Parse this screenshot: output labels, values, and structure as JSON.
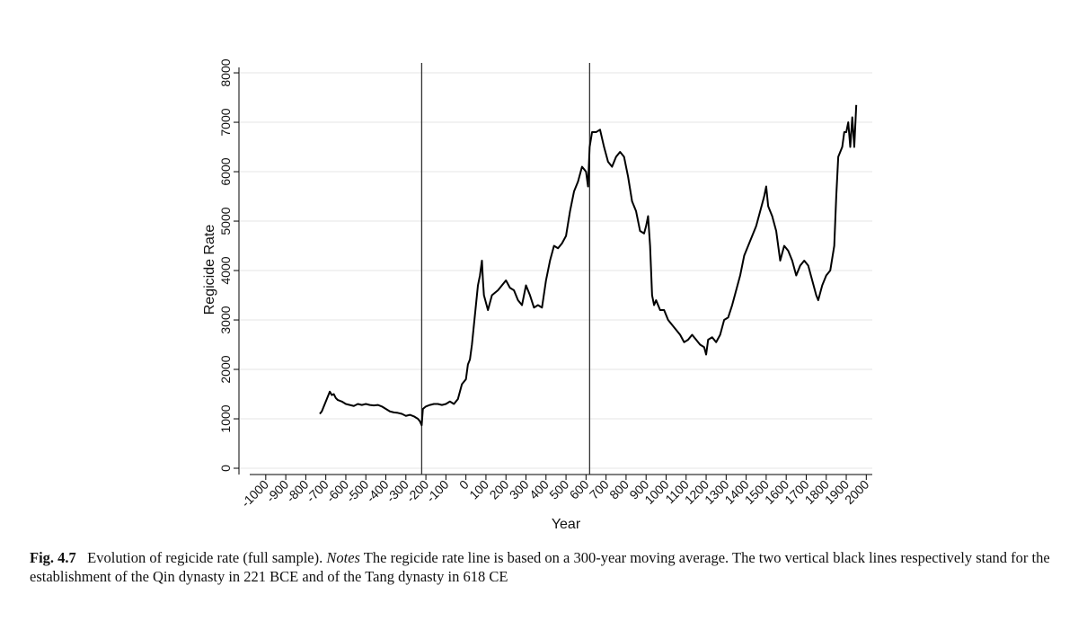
{
  "chart_data": {
    "type": "line",
    "xlabel": "Year",
    "ylabel": "Regicide Rate",
    "xlim": [
      -1080,
      2030
    ],
    "ylim": [
      -127,
      8110
    ],
    "xticks": [
      -1000,
      -900,
      -800,
      -700,
      -600,
      -500,
      -400,
      -300,
      -200,
      -100,
      0,
      100,
      200,
      300,
      400,
      500,
      600,
      700,
      800,
      900,
      1000,
      1100,
      1200,
      1300,
      1400,
      1500,
      1600,
      1700,
      1800,
      1900,
      2000
    ],
    "yticks": [
      0,
      1000,
      2000,
      3000,
      4000,
      5000,
      6000,
      7000,
      8000
    ],
    "grid": true,
    "vlines": [
      -221,
      618
    ],
    "x": [
      -730,
      -720,
      -710,
      -700,
      -690,
      -680,
      -670,
      -660,
      -650,
      -640,
      -620,
      -600,
      -580,
      -560,
      -540,
      -520,
      -500,
      -480,
      -460,
      -440,
      -420,
      -400,
      -380,
      -360,
      -340,
      -320,
      -300,
      -280,
      -260,
      -240,
      -230,
      -221,
      -215,
      -200,
      -180,
      -160,
      -140,
      -120,
      -100,
      -80,
      -60,
      -40,
      -20,
      0,
      10,
      20,
      30,
      40,
      50,
      60,
      70,
      80,
      85,
      90,
      110,
      130,
      160,
      180,
      200,
      220,
      240,
      260,
      280,
      300,
      320,
      340,
      360,
      380,
      400,
      420,
      440,
      460,
      480,
      500,
      520,
      540,
      560,
      580,
      600,
      610,
      618,
      630,
      650,
      670,
      690,
      710,
      730,
      750,
      770,
      790,
      810,
      830,
      850,
      870,
      890,
      900,
      910,
      920,
      930,
      940,
      950,
      970,
      990,
      1010,
      1030,
      1050,
      1070,
      1090,
      1110,
      1130,
      1150,
      1170,
      1190,
      1200,
      1210,
      1230,
      1250,
      1270,
      1290,
      1310,
      1330,
      1350,
      1370,
      1390,
      1410,
      1430,
      1450,
      1470,
      1490,
      1500,
      1510,
      1530,
      1550,
      1570,
      1590,
      1610,
      1630,
      1650,
      1670,
      1690,
      1710,
      1730,
      1750,
      1760,
      1780,
      1800,
      1820,
      1840,
      1850,
      1860,
      1880,
      1890,
      1900,
      1910,
      1920,
      1930,
      1940,
      1950
    ],
    "series": [
      {
        "name": "Regicide Rate",
        "color": "#000000",
        "values": [
          1100,
          1150,
          1250,
          1350,
          1450,
          1550,
          1480,
          1500,
          1420,
          1380,
          1350,
          1300,
          1280,
          1260,
          1300,
          1280,
          1300,
          1280,
          1270,
          1280,
          1250,
          1200,
          1150,
          1130,
          1120,
          1100,
          1060,
          1080,
          1050,
          1000,
          950,
          870,
          1200,
          1250,
          1280,
          1300,
          1300,
          1280,
          1300,
          1350,
          1300,
          1400,
          1700,
          1800,
          2100,
          2200,
          2500,
          2900,
          3300,
          3700,
          3900,
          4200,
          3800,
          3500,
          3200,
          3500,
          3600,
          3700,
          3800,
          3650,
          3600,
          3400,
          3300,
          3700,
          3500,
          3250,
          3300,
          3250,
          3800,
          4200,
          4500,
          4450,
          4550,
          4700,
          5200,
          5600,
          5800,
          6100,
          6000,
          5700,
          6500,
          6800,
          6800,
          6850,
          6500,
          6200,
          6100,
          6300,
          6400,
          6300,
          5900,
          5400,
          5200,
          4800,
          4750,
          4900,
          5100,
          4500,
          3500,
          3300,
          3400,
          3200,
          3200,
          3000,
          2900,
          2800,
          2700,
          2550,
          2600,
          2700,
          2600,
          2500,
          2450,
          2300,
          2600,
          2650,
          2550,
          2700,
          3000,
          3050,
          3300,
          3600,
          3900,
          4300,
          4500,
          4700,
          4900,
          5200,
          5500,
          5700,
          5300,
          5100,
          4800,
          4200,
          4500,
          4400,
          4200,
          3900,
          4100,
          4200,
          4100,
          3800,
          3500,
          3400,
          3700,
          3900,
          4000,
          4500,
          5500,
          6300,
          6500,
          6800,
          6800,
          7000,
          6500,
          7100,
          6500,
          7350
        ]
      }
    ]
  },
  "caption": {
    "label": "Fig. 4.7",
    "text": "Evolution of regicide rate (full sample).",
    "notes_label": "Notes",
    "notes": "The regicide rate line is based on a 300-year moving average. The two vertical black lines respectively stand for the establishment of the Qin dynasty in 221 BCE and of the Tang dynasty in 618 CE"
  }
}
